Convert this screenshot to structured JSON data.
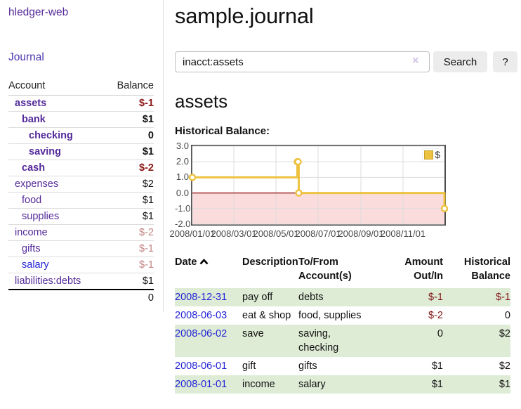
{
  "brand": "hledger-web",
  "sidebar": {
    "journal_link": "Journal",
    "accounts": {
      "col_account": "Account",
      "col_balance": "Balance",
      "rows": [
        {
          "name": "assets",
          "depth": 1,
          "balance": "$-1",
          "bold": true,
          "neg": "strong",
          "link": "purple"
        },
        {
          "name": "bank",
          "depth": 2,
          "balance": "$1",
          "bold": true,
          "neg": null,
          "link": "purple"
        },
        {
          "name": "checking",
          "depth": 3,
          "balance": "0",
          "bold": true,
          "neg": null,
          "link": "purple"
        },
        {
          "name": "saving",
          "depth": 3,
          "balance": "$1",
          "bold": true,
          "neg": null,
          "link": "purple"
        },
        {
          "name": "cash",
          "depth": 2,
          "balance": "$-2",
          "bold": true,
          "neg": "strong",
          "link": "purple"
        },
        {
          "name": "expenses",
          "depth": 1,
          "balance": "$2",
          "bold": false,
          "neg": null,
          "link": "purple"
        },
        {
          "name": "food",
          "depth": 2,
          "balance": "$1",
          "bold": false,
          "neg": null,
          "link": "purple"
        },
        {
          "name": "supplies",
          "depth": 2,
          "balance": "$1",
          "bold": false,
          "neg": null,
          "link": "purple"
        },
        {
          "name": "income",
          "depth": 1,
          "balance": "$-2",
          "bold": false,
          "neg": "light",
          "link": "purple"
        },
        {
          "name": "gifts",
          "depth": 2,
          "balance": "$-1",
          "bold": false,
          "neg": "light",
          "link": "purple"
        },
        {
          "name": "salary",
          "depth": 2,
          "balance": "$-1",
          "bold": false,
          "neg": "light",
          "link": "blue"
        },
        {
          "name": "liabilities:debts",
          "depth": 1,
          "balance": "$1",
          "bold": false,
          "neg": null,
          "link": "purple"
        }
      ],
      "total": "0"
    }
  },
  "main": {
    "title": "sample.journal",
    "search": {
      "value": "inacct:assets",
      "clear_label": "×",
      "search_label": "Search",
      "help_label": "?"
    },
    "account_heading": "assets",
    "chart_heading": "Historical Balance:"
  },
  "chart_data": {
    "type": "line",
    "step": true,
    "title": "Historical Balance",
    "series": [
      {
        "name": "$",
        "color": "#EDC240",
        "points": [
          [
            "2008-01-01",
            1
          ],
          [
            "2008-06-01",
            2
          ],
          [
            "2008-06-02",
            2
          ],
          [
            "2008-06-03",
            0
          ],
          [
            "2008-12-31",
            -1
          ]
        ]
      }
    ],
    "xlim": [
      "2008-01-01",
      "2008-12-31"
    ],
    "ylim": [
      -2,
      3
    ],
    "y_ticks": [
      3,
      2,
      1,
      0,
      -1,
      -2
    ],
    "y_tick_labels": [
      "3.0",
      "2.0",
      "1.0",
      "0.0",
      "-1.0",
      "-2.0"
    ],
    "x_ticks": [
      "2008-01-01",
      "2008-03-01",
      "2008-05-01",
      "2008-07-01",
      "2008-09-01",
      "2008-11-01"
    ],
    "x_tick_labels": [
      "2008/01/01",
      "2008/03/01",
      "2008/05/01",
      "2008/07/01",
      "2008/09/01",
      "2008/11/01"
    ],
    "grid": true,
    "legend": "$",
    "legend_position": "top-right",
    "zero_line_color": "#8b0000",
    "negative_fill": "#fbdcdc",
    "grid_color": "#dcdcdc"
  },
  "register": {
    "headers": [
      "Date",
      "Description",
      "To/From\nAccount(s)",
      "Amount\nOut/In",
      "Historical\nBalance"
    ],
    "rows": [
      {
        "date": "2008-12-31",
        "description": "pay off",
        "accounts": "debts",
        "amount": "$-1",
        "amount_neg": true,
        "balance": "$-1",
        "balance_neg": true
      },
      {
        "date": "2008-06-03",
        "description": "eat & shop",
        "accounts": "food, supplies",
        "amount": "$-2",
        "amount_neg": true,
        "balance": "0",
        "balance_neg": false
      },
      {
        "date": "2008-06-02",
        "description": "save",
        "accounts": "saving, checking",
        "amount": "0",
        "amount_neg": false,
        "balance": "$2",
        "balance_neg": false
      },
      {
        "date": "2008-06-01",
        "description": "gift",
        "accounts": "gifts",
        "amount": "$1",
        "amount_neg": false,
        "balance": "$2",
        "balance_neg": false
      },
      {
        "date": "2008-01-01",
        "description": "income",
        "accounts": "salary",
        "amount": "$1",
        "amount_neg": false,
        "balance": "$1",
        "balance_neg": false
      }
    ]
  }
}
